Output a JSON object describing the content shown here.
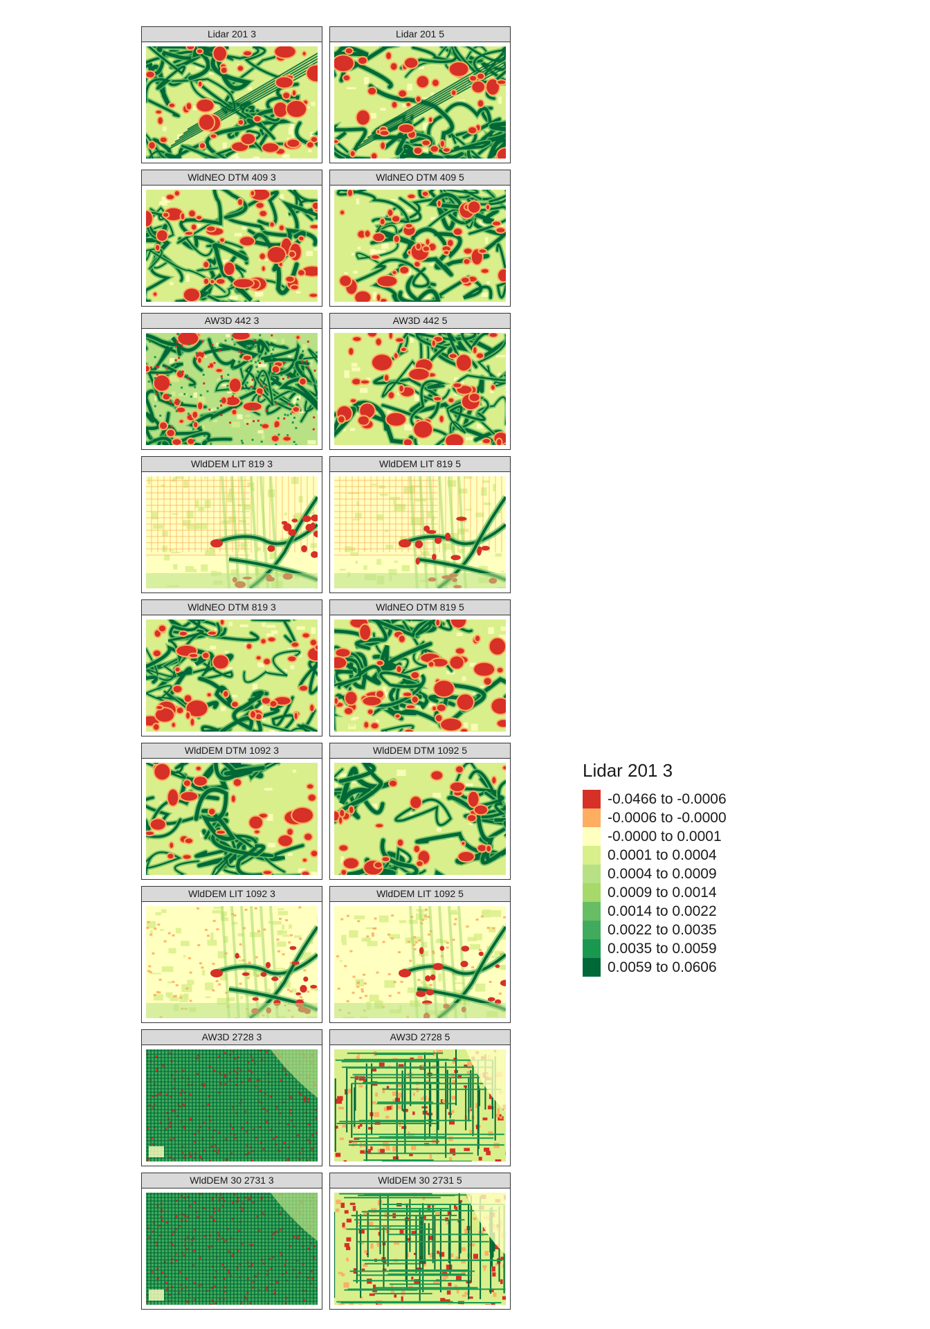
{
  "legend": {
    "title": "Lidar 201 3",
    "classes": [
      {
        "label": "-0.0466 to -0.0006",
        "color": "#d73027"
      },
      {
        "label": "-0.0006 to -0.0000",
        "color": "#fdae61"
      },
      {
        "label": "-0.0000 to 0.0001",
        "color": "#ffffbf"
      },
      {
        "label": "0.0001 to 0.0004",
        "color": "#d9ef8b"
      },
      {
        "label": "0.0004 to 0.0009",
        "color": "#b8e186"
      },
      {
        "label": "0.0009 to 0.0014",
        "color": "#a6d96a"
      },
      {
        "label": "0.0014 to 0.0022",
        "color": "#66bd63"
      },
      {
        "label": "0.0022 to 0.0035",
        "color": "#41ab5d"
      },
      {
        "label": "0.0035 to 0.0059",
        "color": "#1a9850"
      },
      {
        "label": "0.0059 to 0.0606",
        "color": "#006837"
      }
    ]
  },
  "panels": [
    {
      "title": "Lidar 201 3",
      "pattern": "channels-diagonal"
    },
    {
      "title": "Lidar 201 5",
      "pattern": "channels-diagonal"
    },
    {
      "title": "WldNEO DTM 409 3",
      "pattern": "channels"
    },
    {
      "title": "WldNEO DTM 409 5",
      "pattern": "channels"
    },
    {
      "title": "AW3D 442 3",
      "pattern": "channels-noisy"
    },
    {
      "title": "AW3D 442 5",
      "pattern": "channels"
    },
    {
      "title": "WldDEM LIT 819 3",
      "pattern": "flat-grid"
    },
    {
      "title": "WldDEM LIT 819 5",
      "pattern": "flat-grid"
    },
    {
      "title": "WldNEO DTM 819 3",
      "pattern": "channels"
    },
    {
      "title": "WldNEO DTM 819 5",
      "pattern": "channels"
    },
    {
      "title": "WldDEM DTM 1092 3",
      "pattern": "channels-smooth"
    },
    {
      "title": "WldDEM DTM 1092 5",
      "pattern": "channels-smooth"
    },
    {
      "title": "WldDEM LIT 1092 3",
      "pattern": "flat"
    },
    {
      "title": "WldDEM LIT 1092 5",
      "pattern": "flat"
    },
    {
      "title": "AW3D 2728 3",
      "pattern": "grid-dense"
    },
    {
      "title": "AW3D 2728 5",
      "pattern": "grid-sparse"
    },
    {
      "title": "WldDEM 30 2731 3",
      "pattern": "grid-dense"
    },
    {
      "title": "WldDEM 30 2731 5",
      "pattern": "grid-sparse"
    }
  ]
}
